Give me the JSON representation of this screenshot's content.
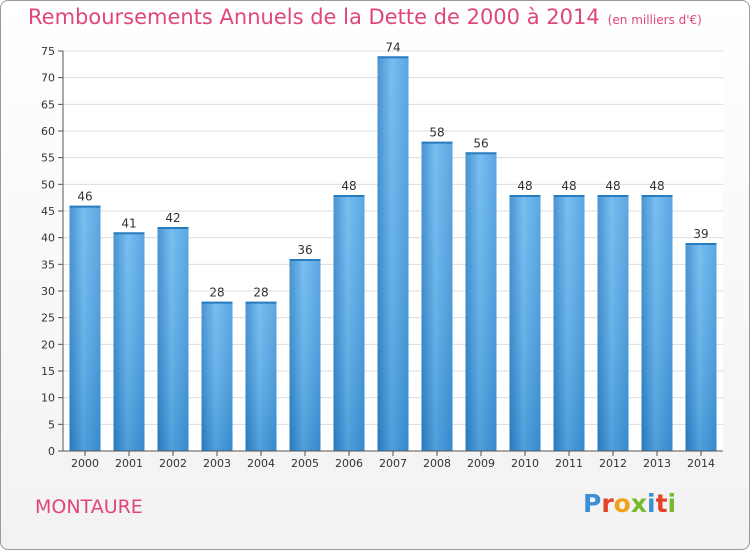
{
  "chart_data": {
    "type": "bar",
    "title": "Remboursements Annuels de la Dette de 2000 à 2014",
    "subtitle": "(en milliers d'€)",
    "categories": [
      "2000",
      "2001",
      "2002",
      "2003",
      "2004",
      "2005",
      "2006",
      "2007",
      "2008",
      "2009",
      "2010",
      "2011",
      "2012",
      "2013",
      "2014"
    ],
    "values": [
      46,
      41,
      42,
      28,
      28,
      36,
      48,
      74,
      58,
      56,
      48,
      48,
      48,
      48,
      39
    ],
    "ylim": [
      0,
      75
    ],
    "yticks": [
      0,
      5,
      10,
      15,
      20,
      25,
      30,
      35,
      40,
      45,
      50,
      55,
      60,
      65,
      70,
      75
    ],
    "grid": true,
    "bar_color": "#3d96dc",
    "bar_color_light": "#60b4ee",
    "bar_color_dark": "#2a80c8"
  },
  "footer": {
    "commune": "MONTAURE",
    "logo_text": "Proxiti",
    "logo_colors": [
      "#3b8fd4",
      "#e6412a",
      "#f0a21a",
      "#7ab830",
      "#3b8fd4",
      "#e6412a",
      "#7ab830"
    ]
  }
}
